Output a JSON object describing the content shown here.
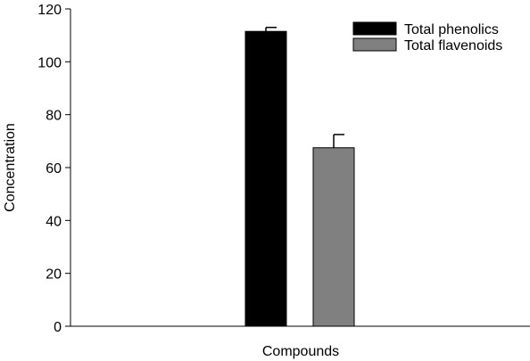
{
  "chart_data": {
    "type": "bar",
    "xlabel": "Compounds",
    "ylabel": "Concentration",
    "ylim": [
      0,
      120
    ],
    "yticks": [
      0,
      20,
      40,
      60,
      80,
      100,
      120
    ],
    "legend_position": "top-right",
    "grid": false,
    "series": [
      {
        "name": "Total phenolics",
        "value": 111.5,
        "error": 1.5,
        "color": "#000000"
      },
      {
        "name": "Total flavenoids",
        "value": 67.5,
        "error": 5.0,
        "color": "#808080"
      }
    ]
  }
}
